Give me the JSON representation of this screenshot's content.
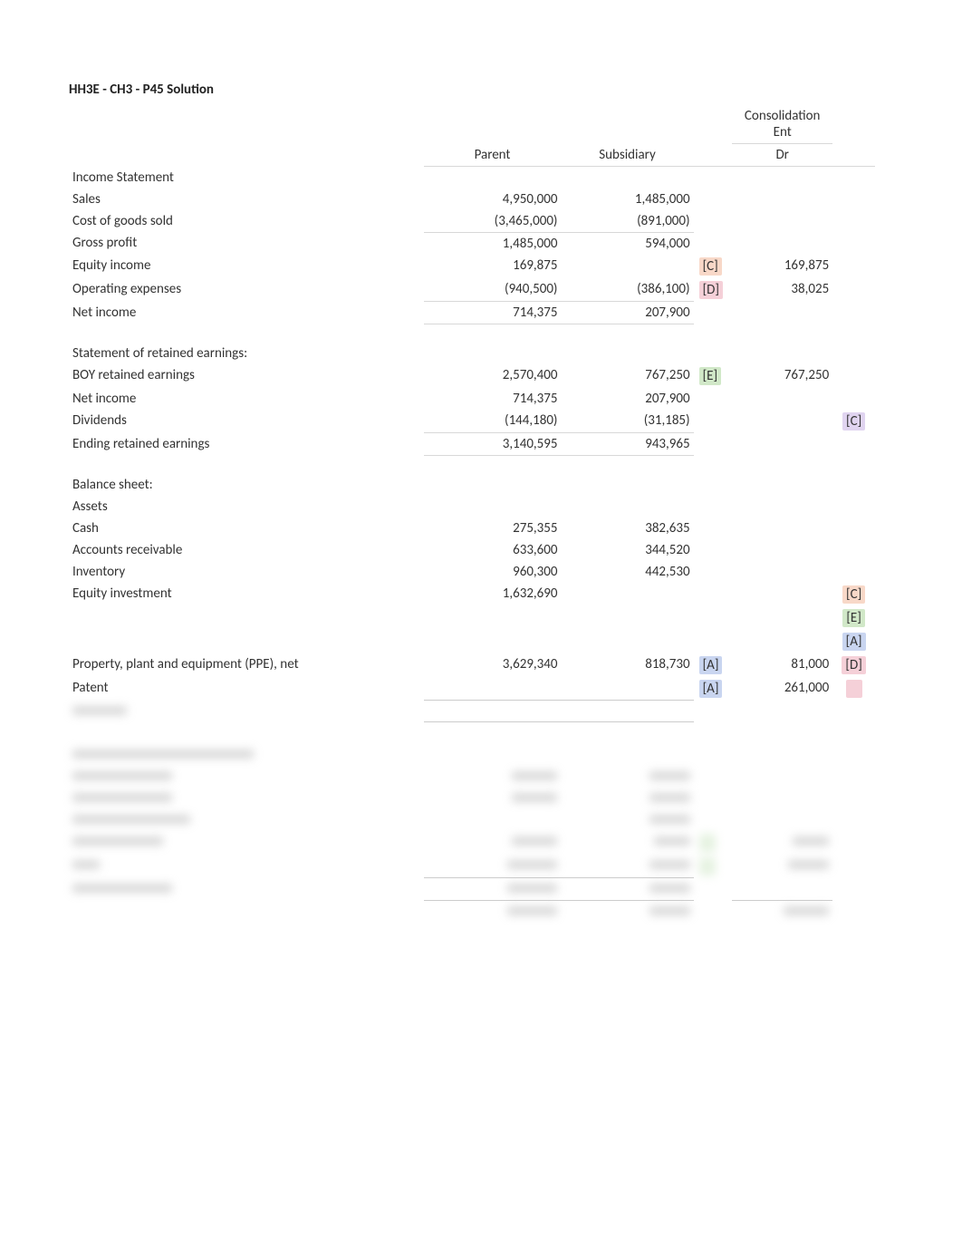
{
  "title": "HH3E - CH3 - P45 Solution",
  "headers": {
    "parent": "Parent",
    "subsidiary": "Subsidiary",
    "consolidation": "Consolidation Ent",
    "dr": "Dr"
  },
  "rows": [
    {
      "label": "Income Statement",
      "parent": "",
      "sub": "",
      "tag1": "",
      "dr": "",
      "tag2": ""
    },
    {
      "label": "Sales",
      "parent": "4,950,000",
      "sub": "1,485,000",
      "tag1": "",
      "dr": "",
      "tag2": ""
    },
    {
      "label": "Cost of goods sold",
      "parent": "(3,465,000)",
      "sub": "(891,000)",
      "tag1": "",
      "dr": "",
      "tag2": ""
    },
    {
      "label": "Gross profit",
      "parent": "1,485,000",
      "sub": "594,000",
      "tag1": "",
      "dr": "",
      "tag2": "",
      "topBorderP": true,
      "topBorderS": true
    },
    {
      "label": "Equity income",
      "parent": "169,875",
      "sub": "",
      "tag1": "[C]",
      "tag1_hl": "hl-orange",
      "dr": "169,875",
      "tag2": ""
    },
    {
      "label": "Operating expenses",
      "parent": "(940,500)",
      "sub": "(386,100)",
      "tag1": "[D]",
      "tag1_hl": "hl-pink",
      "dr": "38,025",
      "tag2": ""
    },
    {
      "label": "Net income",
      "parent": "714,375",
      "sub": "207,900",
      "tag1": "",
      "dr": "",
      "tag2": "",
      "topBorderP": true,
      "topBorderS": true,
      "bottomBorderP": true,
      "bottomBorderS": true
    },
    {
      "spacer": true
    },
    {
      "label": "Statement of retained earnings:",
      "parent": "",
      "sub": "",
      "tag1": "",
      "dr": "",
      "tag2": ""
    },
    {
      "label": "BOY retained earnings",
      "parent": "2,570,400",
      "sub": "767,250",
      "tag1": "[E]",
      "tag1_hl": "hl-green",
      "dr": "767,250",
      "tag2": ""
    },
    {
      "label": "Net income",
      "parent": "714,375",
      "sub": "207,900",
      "tag1": "",
      "dr": "",
      "tag2": ""
    },
    {
      "label": "Dividends",
      "parent": "(144,180)",
      "sub": "(31,185)",
      "tag1": "",
      "dr": "",
      "tag2": "[C]",
      "tag2_hl": "hl-purple"
    },
    {
      "label": "Ending retained earnings",
      "parent": "3,140,595",
      "sub": "943,965",
      "tag1": "",
      "dr": "",
      "tag2": "",
      "topBorderP": true,
      "topBorderS": true,
      "bottomBorderP": true,
      "bottomBorderS": true
    },
    {
      "spacer": true
    },
    {
      "label": "Balance sheet:",
      "parent": "",
      "sub": "",
      "tag1": "",
      "dr": "",
      "tag2": ""
    },
    {
      "label": "Assets",
      "parent": "",
      "sub": "",
      "tag1": "",
      "dr": "",
      "tag2": ""
    },
    {
      "label": "Cash",
      "parent": "275,355",
      "sub": "382,635",
      "tag1": "",
      "dr": "",
      "tag2": ""
    },
    {
      "label": "Accounts receivable",
      "parent": "633,600",
      "sub": "344,520",
      "tag1": "",
      "dr": "",
      "tag2": ""
    },
    {
      "label": "Inventory",
      "parent": "960,300",
      "sub": "442,530",
      "tag1": "",
      "dr": "",
      "tag2": ""
    },
    {
      "label": "Equity investment",
      "parent": "1,632,690",
      "sub": "",
      "tag1": "",
      "dr": "",
      "tag2": "[C]",
      "tag2_hl": "hl-orange"
    },
    {
      "label": "",
      "parent": "",
      "sub": "",
      "tag1": "",
      "dr": "",
      "tag2": "[E]",
      "tag2_hl": "hl-green"
    },
    {
      "label": "",
      "parent": "",
      "sub": "",
      "tag1": "",
      "dr": "",
      "tag2": "[A]",
      "tag2_hl": "hl-blue"
    },
    {
      "label": "Property, plant and equipment (PPE), net",
      "parent": "3,629,340",
      "sub": "818,730",
      "tag1": "[A]",
      "tag1_hl": "hl-blue",
      "dr": "81,000",
      "tag2": "[D]",
      "tag2_hl": "hl-pink"
    },
    {
      "label": "Patent",
      "parent": "",
      "sub": "",
      "tag1": "[A]",
      "tag1_hl": "hl-blue",
      "dr": "261,000",
      "tag2": "",
      "tag2_hl": "hl-pink",
      "tag2_blank_hl": true
    }
  ],
  "blurredRows": [
    {
      "label_w": 60,
      "parent_w": 0,
      "sub_w": 0,
      "tag1_hl": "",
      "dr_w": 0,
      "tag2_hl": "",
      "border": "bottom-both"
    },
    {
      "label_w": 0,
      "parent_w": 0,
      "sub_w": 0
    },
    {
      "label_w": 200,
      "parent_w": 0,
      "sub_w": 0
    },
    {
      "label_w": 110,
      "parent_w": 50,
      "sub_w": 45
    },
    {
      "label_w": 110,
      "parent_w": 50,
      "sub_w": 45
    },
    {
      "label_w": 130,
      "parent_w": 0,
      "sub_w": 45
    },
    {
      "label_w": 100,
      "parent_w": 50,
      "sub_w": 40,
      "tag1_hl": "hl-green",
      "dr_w": 40,
      "tag2_hl": ""
    },
    {
      "label_w": 30,
      "parent_w": 55,
      "sub_w": 45,
      "tag1_hl": "hl-green",
      "dr_w": 45,
      "tag2_hl": ""
    },
    {
      "label_w": 110,
      "parent_w": 55,
      "sub_w": 45,
      "border": "top-both"
    },
    {
      "label_w": 0,
      "parent_w": 55,
      "sub_w": 45,
      "dr_w": 50,
      "border": "top-all-dbl"
    }
  ],
  "colors": {
    "text": "#333333",
    "border": "#d8d8d8",
    "hl_blue": "#c9d5f0",
    "hl_green": "#d1e8c8",
    "hl_orange": "#f8d8c8",
    "hl_purple": "#e0d4f0",
    "hl_pink": "#f5d0d8"
  }
}
